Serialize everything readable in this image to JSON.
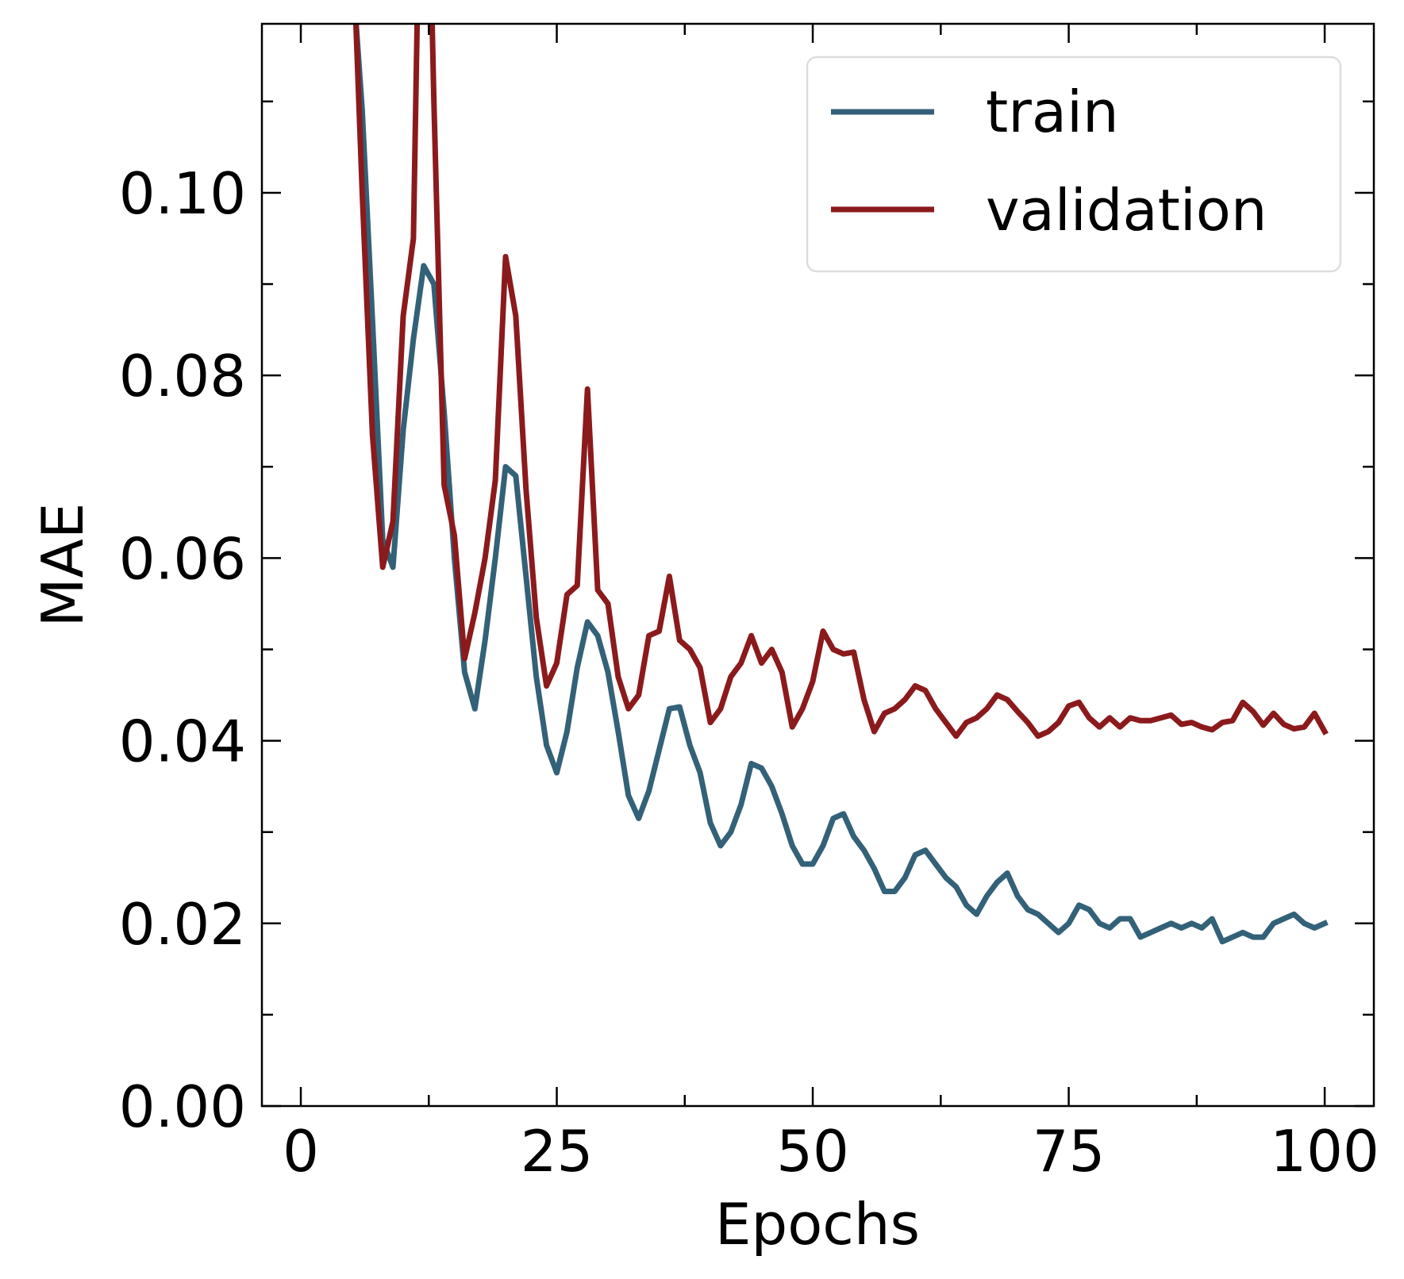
{
  "chart_data": {
    "type": "line",
    "title": "",
    "xlabel": "Epochs",
    "ylabel": "MAE",
    "xlim": [
      -3.8,
      104.8
    ],
    "ylim": [
      0.0,
      0.1185
    ],
    "xticks": [
      0,
      25,
      50,
      75,
      100
    ],
    "xtick_labels": [
      "0",
      "25",
      "50",
      "75",
      "100"
    ],
    "yticks": [
      0.0,
      0.02,
      0.04,
      0.06,
      0.08,
      0.1
    ],
    "ytick_labels": [
      "0.00",
      "0.02",
      "0.04",
      "0.06",
      "0.08",
      "0.10"
    ],
    "x_minor_ticks": [
      12.5,
      37.5,
      62.5,
      87.5
    ],
    "y_minor_ticks": [
      0.01,
      0.03,
      0.05,
      0.07,
      0.09,
      0.11
    ],
    "grid": false,
    "legend_position": "top-right",
    "series": [
      {
        "name": "train",
        "color": "#336178",
        "x": [
          5,
          6,
          7,
          8,
          9,
          10,
          11,
          12,
          13,
          14,
          15,
          16,
          17,
          18,
          19,
          20,
          21,
          22,
          23,
          24,
          25,
          26,
          27,
          28,
          29,
          30,
          31,
          32,
          33,
          34,
          35,
          36,
          37,
          38,
          39,
          40,
          41,
          42,
          43,
          44,
          45,
          46,
          47,
          48,
          49,
          50,
          51,
          52,
          53,
          54,
          55,
          56,
          57,
          58,
          59,
          60,
          61,
          62,
          63,
          64,
          65,
          66,
          67,
          68,
          69,
          70,
          71,
          72,
          73,
          74,
          75,
          76,
          77,
          78,
          79,
          80,
          81,
          82,
          83,
          84,
          85,
          86,
          87,
          88,
          89,
          90,
          91,
          92,
          93,
          94,
          95,
          96,
          97,
          98,
          99,
          100
        ],
        "values": [
          0.125,
          0.109,
          0.086,
          0.062,
          0.059,
          0.074,
          0.084,
          0.092,
          0.09,
          0.076,
          0.06,
          0.0475,
          0.0435,
          0.051,
          0.06,
          0.07,
          0.069,
          0.058,
          0.047,
          0.0395,
          0.0365,
          0.041,
          0.048,
          0.053,
          0.0515,
          0.0475,
          0.041,
          0.034,
          0.0315,
          0.0345,
          0.039,
          0.0435,
          0.0437,
          0.0395,
          0.0365,
          0.031,
          0.0285,
          0.03,
          0.033,
          0.0375,
          0.037,
          0.035,
          0.032,
          0.0285,
          0.0265,
          0.0265,
          0.0285,
          0.0315,
          0.032,
          0.0295,
          0.028,
          0.026,
          0.0235,
          0.0235,
          0.025,
          0.0275,
          0.028,
          0.0265,
          0.025,
          0.024,
          0.022,
          0.021,
          0.023,
          0.0245,
          0.0255,
          0.023,
          0.0215,
          0.021,
          0.02,
          0.019,
          0.02,
          0.022,
          0.0215,
          0.02,
          0.0195,
          0.0205,
          0.0205,
          0.0185,
          0.019,
          0.0195,
          0.02,
          0.0195,
          0.02,
          0.0195,
          0.0205,
          0.018,
          0.0185,
          0.019,
          0.0185,
          0.0185,
          0.02,
          0.0205,
          0.021,
          0.02,
          0.0195,
          0.02
        ]
      },
      {
        "name": "validation",
        "color": "#8b1a1c",
        "x": [
          5,
          6,
          7,
          8,
          9,
          10,
          11,
          12,
          13,
          14,
          15,
          16,
          17,
          18,
          19,
          20,
          21,
          22,
          23,
          24,
          25,
          26,
          27,
          28,
          29,
          30,
          31,
          32,
          33,
          34,
          35,
          36,
          37,
          38,
          39,
          40,
          41,
          42,
          43,
          44,
          45,
          46,
          47,
          48,
          49,
          50,
          51,
          52,
          53,
          54,
          55,
          56,
          57,
          58,
          59,
          60,
          61,
          62,
          63,
          64,
          65,
          66,
          67,
          68,
          69,
          70,
          71,
          72,
          73,
          74,
          75,
          76,
          77,
          78,
          79,
          80,
          81,
          82,
          83,
          84,
          85,
          86,
          87,
          88,
          89,
          90,
          91,
          92,
          93,
          94,
          95,
          96,
          97,
          98,
          99,
          100
        ],
        "values": [
          0.13,
          0.1,
          0.0735,
          0.059,
          0.064,
          0.0865,
          0.095,
          0.16,
          0.11,
          0.068,
          0.0625,
          0.049,
          0.054,
          0.06,
          0.0685,
          0.093,
          0.0865,
          0.0675,
          0.0535,
          0.046,
          0.0485,
          0.056,
          0.057,
          0.0785,
          0.0565,
          0.055,
          0.047,
          0.0435,
          0.045,
          0.0515,
          0.052,
          0.058,
          0.051,
          0.05,
          0.048,
          0.042,
          0.0435,
          0.047,
          0.0485,
          0.0515,
          0.0485,
          0.05,
          0.0475,
          0.0415,
          0.0435,
          0.0465,
          0.052,
          0.05,
          0.0495,
          0.0497,
          0.0445,
          0.041,
          0.043,
          0.0435,
          0.0445,
          0.046,
          0.0455,
          0.0435,
          0.042,
          0.0405,
          0.042,
          0.0425,
          0.0435,
          0.045,
          0.0445,
          0.0432,
          0.042,
          0.0405,
          0.041,
          0.042,
          0.0438,
          0.0442,
          0.0425,
          0.0415,
          0.0425,
          0.0415,
          0.0425,
          0.0422,
          0.0422,
          0.0425,
          0.0428,
          0.0418,
          0.042,
          0.0415,
          0.0412,
          0.042,
          0.0422,
          0.0442,
          0.0432,
          0.0417,
          0.043,
          0.0418,
          0.0413,
          0.0415,
          0.043,
          0.041
        ]
      }
    ]
  }
}
